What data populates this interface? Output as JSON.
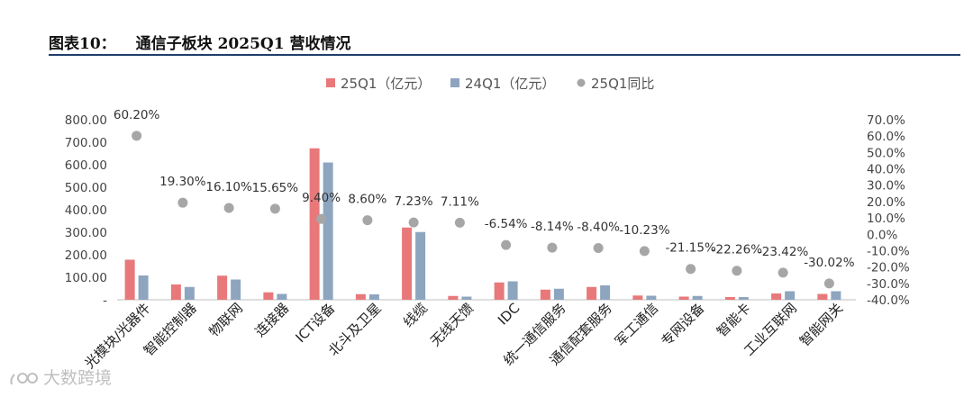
{
  "header": {
    "figure_label": "图表10：",
    "title": "通信子板块 2025Q1 营收情况"
  },
  "watermark": {
    "text": "大数跨境"
  },
  "chart_data": {
    "type": "bar",
    "categories": [
      "光模块/光器件",
      "智能控制器",
      "物联网",
      "连接器",
      "ICT设备",
      "北斗及卫星",
      "线缆",
      "无线天馈",
      "IDC",
      "统一通信服务",
      "通信配套服务",
      "军工通信",
      "专网设备",
      "智能卡",
      "工业互联网",
      "智能网关"
    ],
    "series": [
      {
        "name": "25Q1（亿元）",
        "type": "bar",
        "axis": "left",
        "color": "#e8787a",
        "values": [
          178,
          68,
          107,
          33,
          673,
          25,
          321,
          17,
          77,
          45,
          57,
          19,
          14,
          12,
          28,
          26
        ]
      },
      {
        "name": "24Q1（亿元）",
        "type": "bar",
        "axis": "left",
        "color": "#8ea5c0",
        "values": [
          108,
          57,
          90,
          26,
          610,
          24,
          301,
          14,
          82,
          49,
          64,
          18,
          17,
          12,
          38,
          38
        ]
      },
      {
        "name": "25Q1同比",
        "type": "scatter",
        "axis": "right",
        "color": "#a6a6a6",
        "values": [
          60.2,
          19.3,
          16.1,
          15.65,
          9.4,
          8.6,
          7.23,
          7.11,
          -6.54,
          -8.14,
          -8.4,
          -10.23,
          -21.15,
          -22.26,
          -23.42,
          -30.02
        ],
        "labels": [
          "60.20%",
          "19.30%",
          "16.10%",
          "15.65%",
          "9.40%",
          "8.60%",
          "7.23%",
          "7.11%",
          "-6.54%",
          "-8.14%",
          "-8.40%",
          "-10.23%",
          "-21.15%",
          "-22.26%",
          "-23.42%",
          "-30.02%"
        ]
      }
    ],
    "y_left": {
      "ylim": [
        0,
        800
      ],
      "ticks": [
        0,
        100,
        200,
        300,
        400,
        500,
        600,
        700,
        800
      ],
      "tick_labels": [
        "-",
        "100.00",
        "200.00",
        "300.00",
        "400.00",
        "500.00",
        "600.00",
        "700.00",
        "800.00"
      ]
    },
    "y_right": {
      "ylim": [
        -40,
        70
      ],
      "ticks": [
        -40,
        -30,
        -20,
        -10,
        0,
        10,
        20,
        30,
        40,
        50,
        60,
        70
      ],
      "tick_labels": [
        "-40.0%",
        "-30.0%",
        "-20.0%",
        "-10.0%",
        "0.0%",
        "10.0%",
        "20.0%",
        "30.0%",
        "40.0%",
        "50.0%",
        "60.0%",
        "70.0%"
      ]
    },
    "legend_position": "top-center",
    "grid": false
  }
}
